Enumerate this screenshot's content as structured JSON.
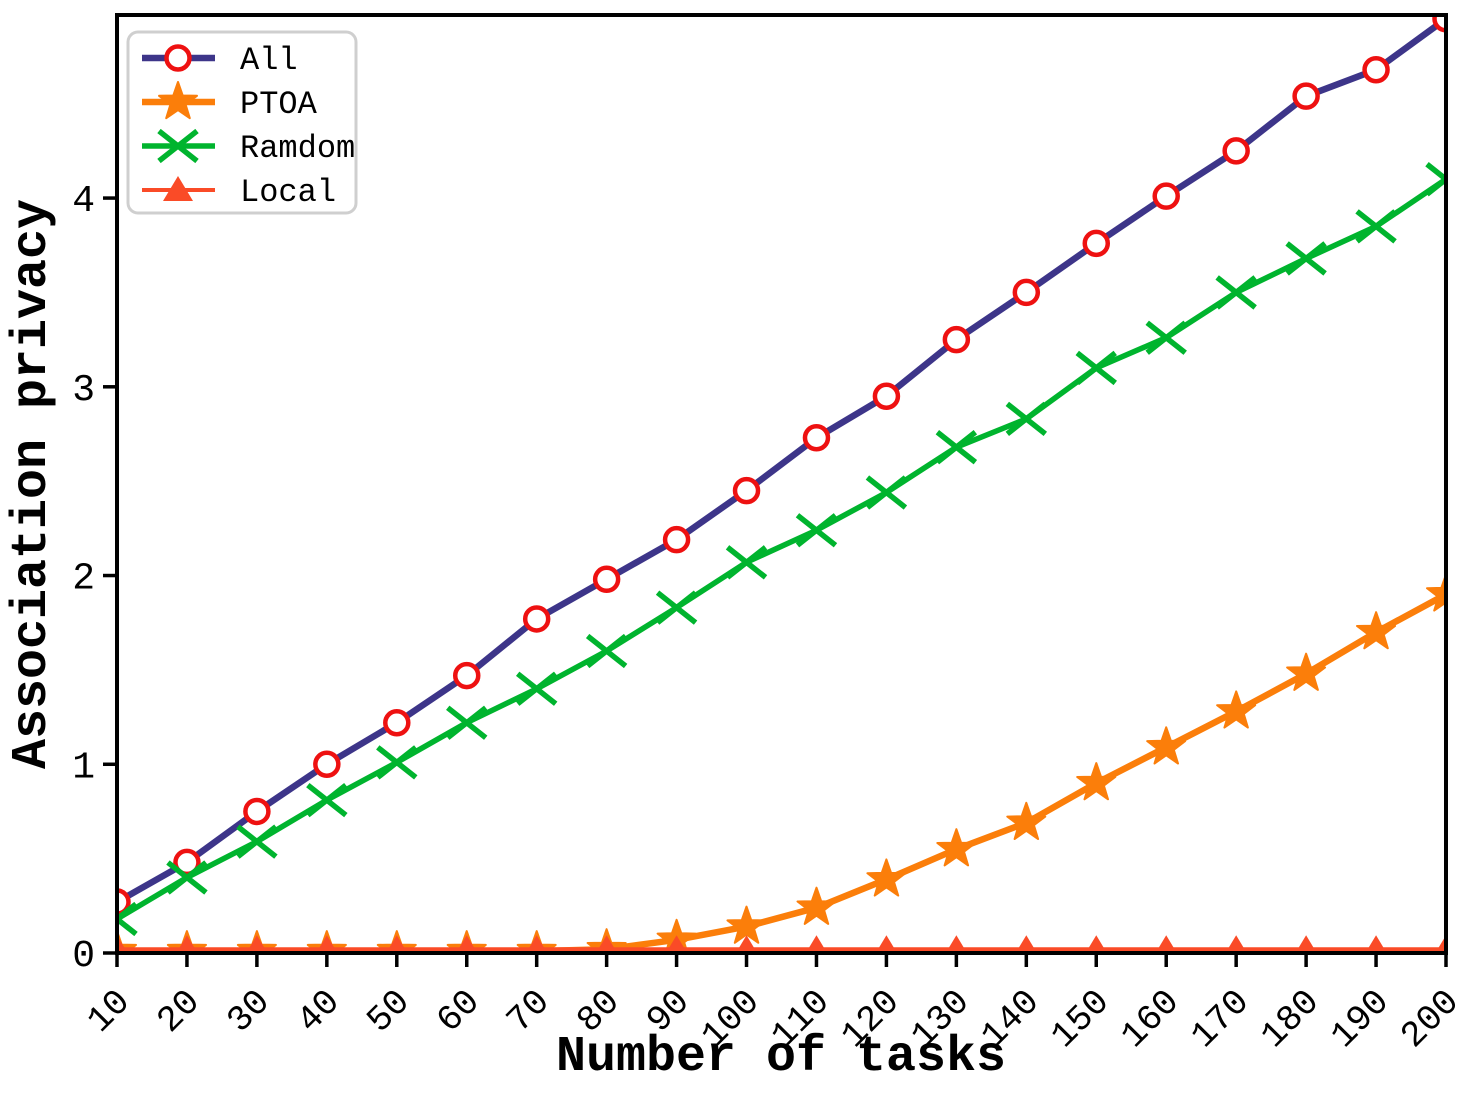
{
  "figure": {
    "background": "#ffffff",
    "spine_color": "#000000",
    "legend_border_color": "#cfcfcf"
  },
  "chart_data": {
    "type": "line",
    "title": "",
    "xlabel": "Number of tasks",
    "ylabel": "Association privacy",
    "xlim": [
      10,
      200
    ],
    "ylim": [
      0,
      4.97
    ],
    "grid": false,
    "legend_position": "upper-left",
    "x_tick_rotation_deg": 45,
    "x": [
      10,
      20,
      30,
      40,
      50,
      60,
      70,
      80,
      90,
      100,
      110,
      120,
      130,
      140,
      150,
      160,
      170,
      180,
      190,
      200
    ],
    "x_ticks": [
      10,
      20,
      30,
      40,
      50,
      60,
      70,
      80,
      90,
      100,
      110,
      120,
      130,
      140,
      150,
      160,
      170,
      180,
      190,
      200
    ],
    "y_ticks": [
      0,
      1,
      2,
      3,
      4
    ],
    "series": [
      {
        "name": "All",
        "line_color": "#3d3589",
        "line_width": 6.5,
        "marker": "circle",
        "marker_color": "#ee1111",
        "marker_fill": "#ffffff",
        "values": [
          0.27,
          0.48,
          0.75,
          1.0,
          1.22,
          1.47,
          1.77,
          1.98,
          2.19,
          2.45,
          2.73,
          2.95,
          3.25,
          3.5,
          3.76,
          4.01,
          4.25,
          4.54,
          4.68,
          4.95
        ]
      },
      {
        "name": "PTOA",
        "line_color": "#fb7e0a",
        "line_width": 6.5,
        "marker": "star",
        "marker_color": "#fb7e0a",
        "marker_fill": "#fb7e0a",
        "values": [
          0.01,
          0.01,
          0.01,
          0.01,
          0.01,
          0.01,
          0.01,
          0.02,
          0.07,
          0.14,
          0.24,
          0.39,
          0.55,
          0.69,
          0.9,
          1.09,
          1.28,
          1.48,
          1.7,
          1.9
        ]
      },
      {
        "name": "Ramdom",
        "line_color": "#00b42e",
        "line_width": 5.5,
        "marker": "x",
        "marker_color": "#00b42e",
        "marker_fill": "none",
        "values": [
          0.18,
          0.4,
          0.59,
          0.81,
          1.01,
          1.22,
          1.4,
          1.6,
          1.83,
          2.07,
          2.24,
          2.44,
          2.68,
          2.83,
          3.1,
          3.26,
          3.5,
          3.68,
          3.85,
          4.1
        ]
      },
      {
        "name": "Local",
        "line_color": "#fa4b27",
        "line_width": 4,
        "marker": "triangle",
        "marker_color": "#fa4b27",
        "marker_fill": "#fa4b27",
        "values": [
          0.02,
          0.02,
          0.02,
          0.02,
          0.02,
          0.02,
          0.02,
          0.02,
          0.02,
          0.02,
          0.02,
          0.02,
          0.02,
          0.02,
          0.02,
          0.02,
          0.02,
          0.02,
          0.02,
          0.02
        ]
      }
    ]
  }
}
